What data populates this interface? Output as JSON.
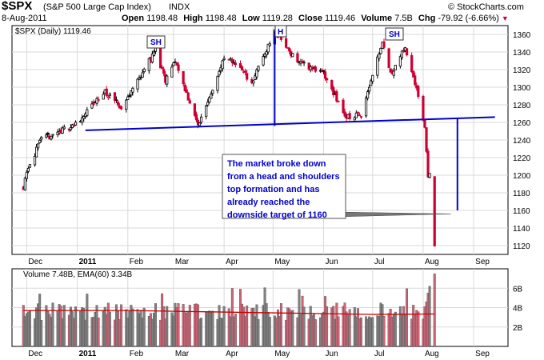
{
  "header": {
    "ticker": "$SPX",
    "name": "(S&P 500 Large Cap Index)",
    "exchange": "INDX",
    "source": "© StockCharts.com",
    "date": "8-Aug-2011",
    "open_label": "Open",
    "open": "1198.48",
    "high_label": "High",
    "high": "1198.48",
    "low_label": "Low",
    "low": "1119.28",
    "close_label": "Close",
    "close": "1119.46",
    "volume_label": "Volume",
    "volume": "7.5B",
    "chg_label": "Chg",
    "chg": "-79.92 (-6.66%)"
  },
  "price_legend": "$SPX (Daily) 1119.46",
  "volume_legend": "Volume 7.48B, EMA(60) 3.34B",
  "annotation": {
    "lines": [
      "The market broke down",
      "from a head and shoulders",
      "top formation and has",
      "already reached the",
      "downside target of 1160"
    ]
  },
  "pattern_labels": {
    "left": "SH",
    "head": "H",
    "right": "SH"
  },
  "x_labels": [
    "Dec",
    "2011",
    "Feb",
    "Mar",
    "Apr",
    "May",
    "Jun",
    "Jul",
    "Aug",
    "Sep"
  ],
  "colors": {
    "up": "#000000",
    "down": "#cc0033",
    "neckline": "#0000cc",
    "ema": "#cc0000",
    "vol_up": "#808080",
    "vol_down": "#cc6677"
  },
  "chart_data": [
    {
      "type": "candlestick",
      "title": "$SPX (Daily) 1119.46",
      "ylim": [
        1110,
        1370
      ],
      "y_ticks": [
        1120,
        1140,
        1160,
        1180,
        1200,
        1220,
        1240,
        1260,
        1280,
        1300,
        1320,
        1340,
        1360
      ],
      "grid": true,
      "x_tick_labels": [
        "Dec",
        "2011",
        "Feb",
        "Mar",
        "Apr",
        "May",
        "Jun",
        "Jul",
        "Aug",
        "Sep"
      ],
      "series": [
        {
          "name": "$SPX",
          "anchors": [
            [
              "2010-11-29",
              1187
            ],
            [
              "2010-12-01",
              1206
            ],
            [
              "2010-12-10",
              1240
            ],
            [
              "2010-12-31",
              1258
            ],
            [
              "2011-01-18",
              1295
            ],
            [
              "2011-01-28",
              1276
            ],
            [
              "2011-02-18",
              1343
            ],
            [
              "2011-02-24",
              1306
            ],
            [
              "2011-03-02",
              1330
            ],
            [
              "2011-03-16",
              1256
            ],
            [
              "2011-04-01",
              1332
            ],
            [
              "2011-04-08",
              1328
            ],
            [
              "2011-04-18",
              1305
            ],
            [
              "2011-05-02",
              1364
            ],
            [
              "2011-05-09",
              1346
            ],
            [
              "2011-05-16",
              1330
            ],
            [
              "2011-06-01",
              1315
            ],
            [
              "2011-06-15",
              1265
            ],
            [
              "2011-06-24",
              1270
            ],
            [
              "2011-07-07",
              1353
            ],
            [
              "2011-07-12",
              1315
            ],
            [
              "2011-07-21",
              1344
            ],
            [
              "2011-07-28",
              1300
            ],
            [
              "2011-08-02",
              1254
            ],
            [
              "2011-08-04",
              1200
            ],
            [
              "2011-08-05",
              1199
            ],
            [
              "2011-08-08",
              1119
            ]
          ],
          "last_bar": {
            "date": "2011-08-08",
            "open": 1198.48,
            "high": 1198.48,
            "low": 1119.28,
            "close": 1119.46
          }
        }
      ],
      "neckline": {
        "from": [
          "2011-01-06",
          1251
        ],
        "to": [
          "2011-09-14",
          1266
        ]
      },
      "measured_move": {
        "drop_points": 104,
        "target": 1160,
        "target_at": "2011-08-22"
      }
    },
    {
      "type": "bar",
      "title": "Volume 7.48B, EMA(60) 3.34B",
      "ylim": [
        0,
        8
      ],
      "y_ticks": [
        2,
        4,
        6
      ],
      "y_tick_labels": [
        "2B",
        "4B",
        "6B"
      ],
      "series": [
        {
          "name": "Volume",
          "level": 3.6,
          "last_values": [
            4.1,
            4.6,
            5.5,
            6.2,
            7.48
          ]
        },
        {
          "name": "EMA(60)",
          "anchors": [
            [
              "2010-11-29",
              3.7
            ],
            [
              "2011-02-01",
              3.7
            ],
            [
              "2011-04-15",
              3.5
            ],
            [
              "2011-07-01",
              3.3
            ],
            [
              "2011-08-08",
              3.34
            ]
          ]
        }
      ]
    }
  ]
}
